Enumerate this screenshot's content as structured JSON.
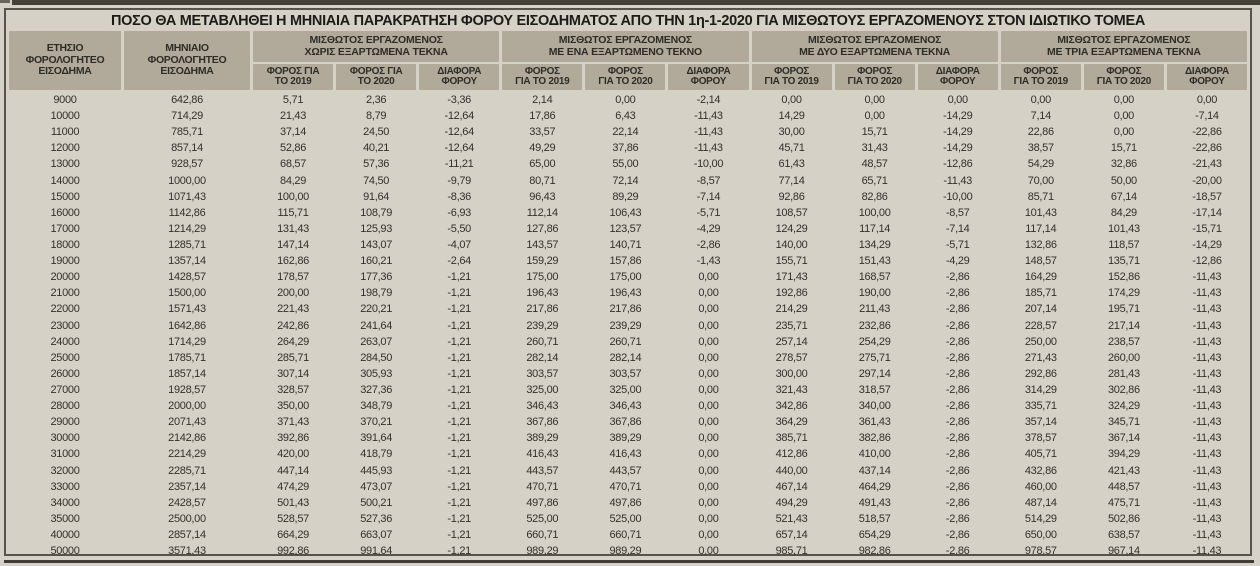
{
  "title": "ΠΟΣΟ ΘΑ ΜΕΤΑΒΛΗΘΕΙ Η ΜΗΝΙΑΙΑ ΠΑΡΑΚΡΑΤΗΣΗ ΦΟΡΟΥ ΕΙΣΟΔΗΜΑΤΟΣ ΑΠΟ ΤΗΝ 1η-1-2020 ΓΙΑ ΜΙΣΘΩΤΟΥΣ ΕΡΓΑΖΟΜΕΝΟΥΣ ΣΤΟΝ ΙΔΙΩΤΙΚΟ ΤΟΜΕΑ",
  "colors": {
    "paper": "#d6d2c9",
    "header_cell": "#b1aa9a",
    "frame_border": "#57534a",
    "body_text": "#33302b",
    "title_text": "#1d1b18"
  },
  "table": {
    "income_header": [
      "ΕΤΗΣΙΟ",
      "ΦΟΡΟΛΟΓΗΤΕΟ",
      "ΕΙΣΟΔΗΜΑ"
    ],
    "monthly_header": [
      "ΜΗΝΙΑΙΟ",
      "ΦΟΡΟΛΟΓΗΤΕΟ",
      "ΕΙΣΟΔΗΜΑ"
    ],
    "groups": [
      {
        "line1": "ΜΙΣΘΩΤΟΣ ΕΡΓΑΖΟΜΕΝΟΣ",
        "line2": "ΧΩΡΙΣ ΕΞΑΡΤΩΜΕΝΑ ΤΕΚΝΑ",
        "sub": [
          [
            "ΦΟΡΟΣ ΓΙΑ",
            "ΤΟ 2019"
          ],
          [
            "ΦΟΡΟΣ ΓΙΑ",
            "ΤΟ 2020"
          ],
          [
            "ΔΙΑΦΟΡΑ",
            "ΦΟΡΟΥ"
          ]
        ]
      },
      {
        "line1": "ΜΙΣΘΩΤΟΣ ΕΡΓΑΖΟΜΕΝΟΣ",
        "line2": "ΜΕ ΕΝΑ ΕΞΑΡΤΩΜΕΝΟ ΤΕΚΝΟ",
        "sub": [
          [
            "ΦΟΡΟΣ",
            "ΓΙΑ ΤΟ 2019"
          ],
          [
            "ΦΟΡΟΣ",
            "ΓΙΑ ΤΟ 2020"
          ],
          [
            "ΔΙΑΦΟΡΑ",
            "ΦΟΡΟΥ"
          ]
        ]
      },
      {
        "line1": "ΜΙΣΘΩΤΟΣ ΕΡΓΑΖΟΜΕΝΟΣ",
        "line2": "ΜΕ ΔΥΟ ΕΞΑΡΤΩΜΕΝΑ ΤΕΚΝΑ",
        "sub": [
          [
            "ΦΟΡΟΣ",
            "ΓΙΑ ΤΟ 2019"
          ],
          [
            "ΦΟΡΟΣ",
            "ΓΙΑ ΤΟ 2020"
          ],
          [
            "ΔΙΑΦΟΡΑ",
            "ΦΟΡΟΥ"
          ]
        ]
      },
      {
        "line1": "ΜΙΣΘΩΤΟΣ ΕΡΓΑΖΟΜΕΝΟΣ",
        "line2": "ΜΕ ΤΡΙΑ ΕΞΑΡΤΩΜΕΝΑ ΤΕΚΝΑ",
        "sub": [
          [
            "ΦΟΡΟΣ",
            "ΓΙΑ ΤΟ 2019"
          ],
          [
            "ΦΟΡΟΣ",
            "ΓΙΑ ΤΟ 2020"
          ],
          [
            "ΔΙΑΦΟΡΑ",
            "ΦΟΡΟΥ"
          ]
        ]
      }
    ],
    "rows": [
      [
        "9000",
        "642,86",
        "5,71",
        "2,36",
        "-3,36",
        "2,14",
        "0,00",
        "-2,14",
        "0,00",
        "0,00",
        "0,00",
        "0,00",
        "0,00",
        "0,00"
      ],
      [
        "10000",
        "714,29",
        "21,43",
        "8,79",
        "-12,64",
        "17,86",
        "6,43",
        "-11,43",
        "14,29",
        "0,00",
        "-14,29",
        "7,14",
        "0,00",
        "-7,14"
      ],
      [
        "11000",
        "785,71",
        "37,14",
        "24,50",
        "-12,64",
        "33,57",
        "22,14",
        "-11,43",
        "30,00",
        "15,71",
        "-14,29",
        "22,86",
        "0,00",
        "-22,86"
      ],
      [
        "12000",
        "857,14",
        "52,86",
        "40,21",
        "-12,64",
        "49,29",
        "37,86",
        "-11,43",
        "45,71",
        "31,43",
        "-14,29",
        "38,57",
        "15,71",
        "-22,86"
      ],
      [
        "13000",
        "928,57",
        "68,57",
        "57,36",
        "-11,21",
        "65,00",
        "55,00",
        "-10,00",
        "61,43",
        "48,57",
        "-12,86",
        "54,29",
        "32,86",
        "-21,43"
      ],
      [
        "14000",
        "1000,00",
        "84,29",
        "74,50",
        "-9,79",
        "80,71",
        "72,14",
        "-8,57",
        "77,14",
        "65,71",
        "-11,43",
        "70,00",
        "50,00",
        "-20,00"
      ],
      [
        "15000",
        "1071,43",
        "100,00",
        "91,64",
        "-8,36",
        "96,43",
        "89,29",
        "-7,14",
        "92,86",
        "82,86",
        "-10,00",
        "85,71",
        "67,14",
        "-18,57"
      ],
      [
        "16000",
        "1142,86",
        "115,71",
        "108,79",
        "-6,93",
        "112,14",
        "106,43",
        "-5,71",
        "108,57",
        "100,00",
        "-8,57",
        "101,43",
        "84,29",
        "-17,14"
      ],
      [
        "17000",
        "1214,29",
        "131,43",
        "125,93",
        "-5,50",
        "127,86",
        "123,57",
        "-4,29",
        "124,29",
        "117,14",
        "-7,14",
        "117,14",
        "101,43",
        "-15,71"
      ],
      [
        "18000",
        "1285,71",
        "147,14",
        "143,07",
        "-4,07",
        "143,57",
        "140,71",
        "-2,86",
        "140,00",
        "134,29",
        "-5,71",
        "132,86",
        "118,57",
        "-14,29"
      ],
      [
        "19000",
        "1357,14",
        "162,86",
        "160,21",
        "-2,64",
        "159,29",
        "157,86",
        "-1,43",
        "155,71",
        "151,43",
        "-4,29",
        "148,57",
        "135,71",
        "-12,86"
      ],
      [
        "20000",
        "1428,57",
        "178,57",
        "177,36",
        "-1,21",
        "175,00",
        "175,00",
        "0,00",
        "171,43",
        "168,57",
        "-2,86",
        "164,29",
        "152,86",
        "-11,43"
      ],
      [
        "21000",
        "1500,00",
        "200,00",
        "198,79",
        "-1,21",
        "196,43",
        "196,43",
        "0,00",
        "192,86",
        "190,00",
        "-2,86",
        "185,71",
        "174,29",
        "-11,43"
      ],
      [
        "22000",
        "1571,43",
        "221,43",
        "220,21",
        "-1,21",
        "217,86",
        "217,86",
        "0,00",
        "214,29",
        "211,43",
        "-2,86",
        "207,14",
        "195,71",
        "-11,43"
      ],
      [
        "23000",
        "1642,86",
        "242,86",
        "241,64",
        "-1,21",
        "239,29",
        "239,29",
        "0,00",
        "235,71",
        "232,86",
        "-2,86",
        "228,57",
        "217,14",
        "-11,43"
      ],
      [
        "24000",
        "1714,29",
        "264,29",
        "263,07",
        "-1,21",
        "260,71",
        "260,71",
        "0,00",
        "257,14",
        "254,29",
        "-2,86",
        "250,00",
        "238,57",
        "-11,43"
      ],
      [
        "25000",
        "1785,71",
        "285,71",
        "284,50",
        "-1,21",
        "282,14",
        "282,14",
        "0,00",
        "278,57",
        "275,71",
        "-2,86",
        "271,43",
        "260,00",
        "-11,43"
      ],
      [
        "26000",
        "1857,14",
        "307,14",
        "305,93",
        "-1,21",
        "303,57",
        "303,57",
        "0,00",
        "300,00",
        "297,14",
        "-2,86",
        "292,86",
        "281,43",
        "-11,43"
      ],
      [
        "27000",
        "1928,57",
        "328,57",
        "327,36",
        "-1,21",
        "325,00",
        "325,00",
        "0,00",
        "321,43",
        "318,57",
        "-2,86",
        "314,29",
        "302,86",
        "-11,43"
      ],
      [
        "28000",
        "2000,00",
        "350,00",
        "348,79",
        "-1,21",
        "346,43",
        "346,43",
        "0,00",
        "342,86",
        "340,00",
        "-2,86",
        "335,71",
        "324,29",
        "-11,43"
      ],
      [
        "29000",
        "2071,43",
        "371,43",
        "370,21",
        "-1,21",
        "367,86",
        "367,86",
        "0,00",
        "364,29",
        "361,43",
        "-2,86",
        "357,14",
        "345,71",
        "-11,43"
      ],
      [
        "30000",
        "2142,86",
        "392,86",
        "391,64",
        "-1,21",
        "389,29",
        "389,29",
        "0,00",
        "385,71",
        "382,86",
        "-2,86",
        "378,57",
        "367,14",
        "-11,43"
      ],
      [
        "31000",
        "2214,29",
        "420,00",
        "418,79",
        "-1,21",
        "416,43",
        "416,43",
        "0,00",
        "412,86",
        "410,00",
        "-2,86",
        "405,71",
        "394,29",
        "-11,43"
      ],
      [
        "32000",
        "2285,71",
        "447,14",
        "445,93",
        "-1,21",
        "443,57",
        "443,57",
        "0,00",
        "440,00",
        "437,14",
        "-2,86",
        "432,86",
        "421,43",
        "-11,43"
      ],
      [
        "33000",
        "2357,14",
        "474,29",
        "473,07",
        "-1,21",
        "470,71",
        "470,71",
        "0,00",
        "467,14",
        "464,29",
        "-2,86",
        "460,00",
        "448,57",
        "-11,43"
      ],
      [
        "34000",
        "2428,57",
        "501,43",
        "500,21",
        "-1,21",
        "497,86",
        "497,86",
        "0,00",
        "494,29",
        "491,43",
        "-2,86",
        "487,14",
        "475,71",
        "-11,43"
      ],
      [
        "35000",
        "2500,00",
        "528,57",
        "527,36",
        "-1,21",
        "525,00",
        "525,00",
        "0,00",
        "521,43",
        "518,57",
        "-2,86",
        "514,29",
        "502,86",
        "-11,43"
      ],
      [
        "40000",
        "2857,14",
        "664,29",
        "663,07",
        "-1,21",
        "660,71",
        "660,71",
        "0,00",
        "657,14",
        "654,29",
        "-2,86",
        "650,00",
        "638,57",
        "-11,43"
      ],
      [
        "50000",
        "3571,43",
        "992,86",
        "991,64",
        "-1,21",
        "989,29",
        "989,29",
        "0,00",
        "985,71",
        "982,86",
        "-2,86",
        "978,57",
        "967,14",
        "-11,43"
      ]
    ]
  }
}
